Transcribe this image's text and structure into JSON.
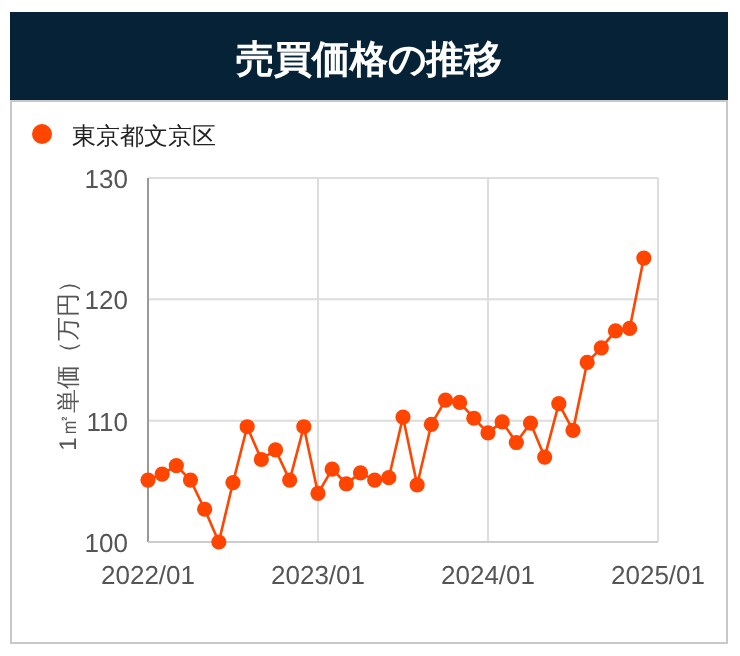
{
  "chart_data": {
    "type": "line",
    "title": "売買価格の推移",
    "ylabel": "1㎡単価（万円）",
    "x": [
      "2022-01",
      "2022-02",
      "2022-03",
      "2022-04",
      "2022-05",
      "2022-06",
      "2022-07",
      "2022-08",
      "2022-09",
      "2022-10",
      "2022-11",
      "2022-12",
      "2023-01",
      "2023-02",
      "2023-03",
      "2023-04",
      "2023-05",
      "2023-06",
      "2023-07",
      "2023-08",
      "2023-09",
      "2023-10",
      "2023-11",
      "2023-12",
      "2024-01",
      "2024-02",
      "2024-03",
      "2024-04",
      "2024-05",
      "2024-06",
      "2024-07",
      "2024-08",
      "2024-09",
      "2024-10",
      "2024-11",
      "2024-12"
    ],
    "series": [
      {
        "name": "東京都文京区",
        "color": "#ff4500",
        "values": [
          105.1,
          105.6,
          106.3,
          105.1,
          102.7,
          100.0,
          104.9,
          109.5,
          106.8,
          107.6,
          105.1,
          109.5,
          104.0,
          106.0,
          104.8,
          105.7,
          105.1,
          105.3,
          110.3,
          104.7,
          109.7,
          111.7,
          111.5,
          110.2,
          109.0,
          109.9,
          108.2,
          109.8,
          107.0,
          111.4,
          109.2,
          114.8,
          116.0,
          117.4,
          117.6,
          123.4
        ]
      }
    ],
    "xlim": [
      "2022-01",
      "2025-01"
    ],
    "xticks": [
      {
        "value": "2022-01",
        "label": "2022/01"
      },
      {
        "value": "2023-01",
        "label": "2023/01"
      },
      {
        "value": "2024-01",
        "label": "2024/01"
      },
      {
        "value": "2025-01",
        "label": "2025/01"
      }
    ],
    "ylim": [
      100,
      130
    ],
    "yticks": [
      100,
      110,
      120,
      130
    ],
    "grid": true,
    "legend": "top left",
    "marker": "circle",
    "line_style": "solid"
  }
}
